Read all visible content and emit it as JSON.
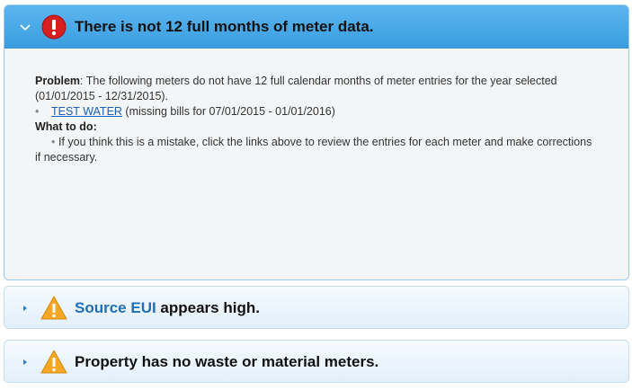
{
  "panels": [
    {
      "title": "There is not 12 full months of meter data.",
      "problem_label": "Problem",
      "problem_text": ": The following meters do not have 12 full calendar months of meter entries for the year selected (01/01/2015 - 12/31/2015).",
      "meters": [
        {
          "name": "TEST WATER",
          "note": "(missing bills for 07/01/2015 - 01/01/2016)"
        }
      ],
      "todo_label": "What to do:",
      "todo_items": [
        "If you think this is a mistake, click the links above to review the entries for each meter and make corrections if necessary."
      ]
    },
    {
      "title_link": "Source EUI",
      "title_rest": " appears high."
    },
    {
      "title": "Property has no waste or material meters."
    }
  ]
}
